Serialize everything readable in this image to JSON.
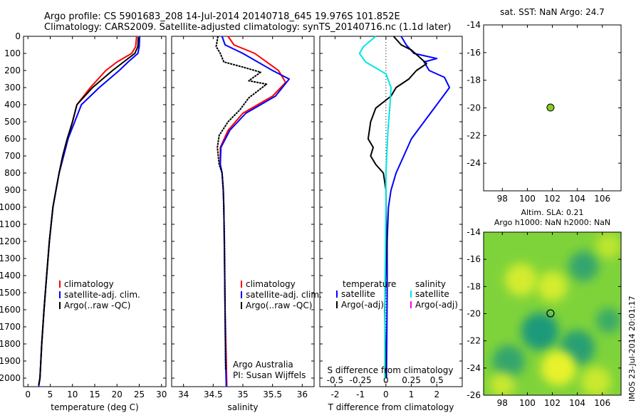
{
  "header": {
    "line1": "Argo profile: CS 5901683_208 14-Jul-2014 20140718_645 19.976S 101.852E",
    "line2": "Climatology: CARS2009. Satellite-adjusted climatology: synTS_20140716.nc (1.1d later)"
  },
  "side_label": "IMOS 23-Jul-2014 20:01:17",
  "colors": {
    "climatology": "#ff0000",
    "satellite": "#0000ff",
    "argo": "#000000",
    "salinity_satellite": "#00e5e5",
    "argo_adj_salinity": "#ff00ff",
    "sst_marker": "#88cc22"
  },
  "chart_data": [
    {
      "id": "temperature",
      "type": "line",
      "xlabel": "temperature (deg C)",
      "xlim": [
        -1,
        31
      ],
      "xticks": [
        0,
        5,
        10,
        15,
        20,
        25,
        30
      ],
      "ylim": [
        0,
        2050
      ],
      "yticks": [
        0,
        100,
        200,
        300,
        400,
        500,
        600,
        700,
        800,
        900,
        1000,
        1100,
        1200,
        1300,
        1400,
        1500,
        1600,
        1700,
        1800,
        1900,
        2000
      ],
      "legend": [
        {
          "label": "climatology",
          "color": "#ff0000"
        },
        {
          "label": "satellite-adj. clim.",
          "color": "#0000ff"
        },
        {
          "label": "Argo(..raw -QC)",
          "color": "#000000"
        }
      ],
      "series": [
        {
          "name": "climatology",
          "color": "#ff0000",
          "x": [
            24.4,
            24.2,
            23.3,
            20.0,
            17.5,
            14.0,
            11.0,
            10.0,
            9.0,
            8.0,
            7.0,
            6.3,
            5.6,
            4.8,
            4.2,
            3.6,
            3.1,
            2.7,
            2.4
          ],
          "y": [
            0,
            60,
            100,
            150,
            200,
            300,
            400,
            500,
            600,
            700,
            800,
            900,
            1000,
            1200,
            1400,
            1600,
            1800,
            2000,
            2050
          ]
        },
        {
          "name": "satellite-adj. clim.",
          "color": "#0000ff",
          "x": [
            25.1,
            25.0,
            24.7,
            22.5,
            20.5,
            16.0,
            12.0,
            10.5,
            9.0,
            8.0,
            7.0,
            6.3,
            5.6,
            4.8,
            4.2,
            3.6,
            3.1,
            2.7,
            2.4
          ],
          "y": [
            0,
            60,
            100,
            150,
            200,
            300,
            400,
            500,
            600,
            700,
            800,
            900,
            1000,
            1200,
            1400,
            1600,
            1800,
            2000,
            2050
          ]
        },
        {
          "name": "Argo",
          "color": "#000000",
          "x": [
            24.8,
            24.7,
            24.0,
            21.5,
            19.0,
            14.5,
            11.0,
            10.0,
            8.8,
            7.8,
            7.0,
            6.3,
            5.6,
            4.8,
            4.2,
            3.6,
            3.1,
            2.7,
            2.4
          ],
          "y": [
            5,
            60,
            100,
            150,
            200,
            300,
            400,
            500,
            600,
            700,
            800,
            900,
            1000,
            1200,
            1400,
            1600,
            1800,
            2000,
            2040
          ]
        }
      ]
    },
    {
      "id": "salinity",
      "type": "line",
      "xlabel": "salinity",
      "xlim": [
        33.8,
        36.2
      ],
      "xticks": [
        34,
        34.5,
        35,
        35.5,
        36
      ],
      "xticklabels": [
        "34",
        "34.5",
        "35",
        "35.5",
        "36"
      ],
      "ylim": [
        0,
        2050
      ],
      "annotation_line1": "Argo Australia",
      "annotation_line2": "PI: Susan Wijffels",
      "legend": [
        {
          "label": "climatology",
          "color": "#ff0000"
        },
        {
          "label": "satellite-adj. clim.",
          "color": "#0000ff"
        },
        {
          "label": "Argo(..raw -QC)",
          "color": "#000000"
        }
      ],
      "series": [
        {
          "name": "climatology",
          "color": "#ff0000",
          "x": [
            34.75,
            34.85,
            35.2,
            35.6,
            35.72,
            35.5,
            35.0,
            34.75,
            34.62,
            34.62,
            34.65,
            34.67,
            34.68,
            34.69,
            34.7,
            34.72,
            34.73
          ],
          "y": [
            0,
            50,
            100,
            200,
            270,
            350,
            450,
            550,
            650,
            750,
            800,
            900,
            1000,
            1300,
            1600,
            1900,
            2050
          ]
        },
        {
          "name": "satellite-adj. clim.",
          "color": "#0000ff",
          "x": [
            34.65,
            34.7,
            35.0,
            35.5,
            35.78,
            35.55,
            35.05,
            34.78,
            34.63,
            34.62,
            34.65,
            34.67,
            34.68,
            34.69,
            34.7,
            34.71,
            34.72
          ],
          "y": [
            0,
            50,
            100,
            200,
            250,
            350,
            450,
            550,
            650,
            750,
            800,
            900,
            1000,
            1300,
            1600,
            1900,
            2050
          ]
        },
        {
          "name": "Argo",
          "color": "#000000",
          "x": [
            34.58,
            34.55,
            34.62,
            34.68,
            35.0,
            35.3,
            35.1,
            35.4,
            35.1,
            34.95,
            34.75,
            34.6,
            34.57,
            34.6,
            34.65,
            34.67,
            34.69,
            34.7,
            34.71
          ],
          "y": [
            0,
            60,
            100,
            150,
            180,
            210,
            260,
            280,
            360,
            430,
            500,
            580,
            650,
            750,
            800,
            900,
            1200,
            1600,
            1950
          ]
        }
      ]
    },
    {
      "id": "difference",
      "type": "line",
      "xlabel": "T difference from climatology",
      "top_label": "S difference from climatology",
      "xlim": [
        -2.6,
        3.0
      ],
      "xticks": [
        -2,
        -1,
        0,
        1,
        2
      ],
      "xticklabels": [
        "-2",
        "-1",
        "0",
        "1",
        "2"
      ],
      "sticks": [
        -0.5,
        -0.25,
        0,
        0.25,
        0.5
      ],
      "sticklabels": [
        "-0.5",
        "-0.25",
        "0",
        "0.25",
        "0.5"
      ],
      "s_scale": 4,
      "ylim": [
        0,
        2050
      ],
      "legend_left_title": "temperature",
      "legend_right_title": "salinity",
      "legend_left": [
        {
          "label": "satellite",
          "color": "#0000ff"
        },
        {
          "label": "Argo(-adj)",
          "color": "#000000"
        }
      ],
      "legend_right": [
        {
          "label": "satellite",
          "color": "#00e5e5"
        },
        {
          "label": "Argo(-adj)",
          "color": "#ff00ff"
        }
      ],
      "series": [
        {
          "name": "T satellite",
          "color": "#0000ff",
          "x": [
            0.6,
            0.8,
            1.1,
            2.0,
            1.5,
            1.7,
            2.3,
            2.5,
            2.0,
            1.5,
            1.0,
            0.7,
            0.4,
            0.2,
            0.1,
            0.05,
            0.05,
            0.02
          ],
          "y": [
            0,
            50,
            100,
            130,
            150,
            200,
            240,
            300,
            400,
            500,
            600,
            700,
            800,
            900,
            1000,
            1200,
            1500,
            2000
          ]
        },
        {
          "name": "T Argo",
          "color": "#000000",
          "x": [
            0.3,
            0.6,
            1.0,
            1.3,
            1.6,
            1.2,
            0.9,
            0.4,
            0.2,
            -0.4,
            -0.6,
            -0.7,
            -0.5,
            -0.6,
            -0.4,
            -0.1,
            0.0,
            0.02,
            -0.05,
            0.0
          ],
          "y": [
            0,
            50,
            80,
            120,
            160,
            200,
            250,
            300,
            350,
            420,
            500,
            600,
            650,
            700,
            750,
            800,
            900,
            1200,
            1600,
            2000
          ]
        },
        {
          "name": "S satellite",
          "color": "#00e5e5",
          "scaled": true,
          "x": [
            -0.1,
            -0.22,
            -0.26,
            -0.2,
            0.0,
            0.05,
            0.04,
            0.02,
            0.0,
            0.0,
            -0.01,
            -0.01
          ],
          "y": [
            0,
            60,
            100,
            150,
            220,
            300,
            400,
            550,
            800,
            1000,
            1500,
            2000
          ]
        }
      ]
    },
    {
      "id": "sst",
      "type": "scatter",
      "title": "sat. SST: NaN Argo: 24.7",
      "xlim": [
        96.5,
        107.5
      ],
      "ylim": [
        -26,
        -14
      ],
      "xticks": [
        98,
        100,
        102,
        104,
        106
      ],
      "yticks": [
        -14,
        -16,
        -18,
        -20,
        -22,
        -24
      ],
      "points": [
        {
          "x": 101.852,
          "y": -19.976
        }
      ]
    },
    {
      "id": "sla",
      "type": "heatmap",
      "title_line1": "Altim. SLA: 0.21",
      "title_line2": "Argo h1000: NaN h2000: NaN",
      "xlim": [
        96.5,
        107.5
      ],
      "ylim": [
        -26,
        -14
      ],
      "xticks": [
        98,
        100,
        102,
        104,
        106
      ],
      "yticks": [
        -14,
        -16,
        -18,
        -20,
        -22,
        -24,
        -26
      ],
      "blobs": [
        {
          "x": 101.0,
          "y": -21.3,
          "r": 1.5,
          "v": -0.8
        },
        {
          "x": 98.5,
          "y": -23.5,
          "r": 1.3,
          "v": -0.6
        },
        {
          "x": 104.5,
          "y": -16.5,
          "r": 1.2,
          "v": -0.6
        },
        {
          "x": 104.0,
          "y": -22.5,
          "r": 1.4,
          "v": -0.7
        },
        {
          "x": 106.5,
          "y": -20.5,
          "r": 1.0,
          "v": -0.5
        },
        {
          "x": 99.5,
          "y": -17.5,
          "r": 1.3,
          "v": 0.6
        },
        {
          "x": 102.0,
          "y": -18.0,
          "r": 1.2,
          "v": 0.6
        },
        {
          "x": 102.5,
          "y": -24.0,
          "r": 1.4,
          "v": 0.8
        },
        {
          "x": 98.0,
          "y": -25.2,
          "r": 1.0,
          "v": 0.5
        },
        {
          "x": 105.5,
          "y": -25.0,
          "r": 1.2,
          "v": 0.5
        },
        {
          "x": 106.5,
          "y": -15.0,
          "r": 1.0,
          "v": 0.4
        }
      ],
      "points": [
        {
          "x": 101.852,
          "y": -19.976
        }
      ]
    }
  ]
}
